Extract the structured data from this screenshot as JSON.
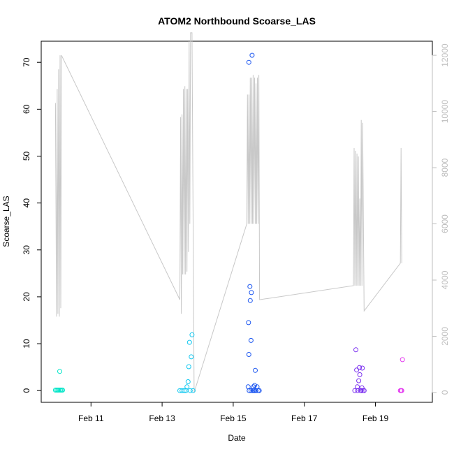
{
  "chart_data": {
    "type": "scatter",
    "title": "ATOM2 Northbound Scoarse_LAS",
    "xlabel": "Date",
    "ylabel": "Scoarse_LAS",
    "x_tick_labels": [
      "Feb 11",
      "Feb 13",
      "Feb 15",
      "Feb 17",
      "Feb 19"
    ],
    "x_tick_values": [
      11,
      13,
      15,
      17,
      19
    ],
    "xlim": [
      9.6,
      20.6
    ],
    "ylim": [
      -2.5,
      74.5
    ],
    "y_ticks": [
      0,
      10,
      20,
      30,
      40,
      50,
      60,
      70
    ],
    "y2lim": [
      -350,
      12500
    ],
    "y2_ticks": [
      0,
      2000,
      4000,
      6000,
      8000,
      10000,
      12000
    ],
    "y2_tick_labels": [
      "0",
      "2000",
      "4000",
      "6000",
      "8000",
      "10000",
      "12000"
    ],
    "line_color": "#c8c8c8",
    "grid": false,
    "points": [
      {
        "x": 10.0,
        "y": 0.1,
        "color": "#00e5c8"
      },
      {
        "x": 10.04,
        "y": 0.1,
        "color": "#00e5c8"
      },
      {
        "x": 10.07,
        "y": 0.1,
        "color": "#00e5c8"
      },
      {
        "x": 10.1,
        "y": 0.1,
        "color": "#00e5c8"
      },
      {
        "x": 10.12,
        "y": 4.1,
        "color": "#00e5c8"
      },
      {
        "x": 10.14,
        "y": 0.1,
        "color": "#00e5c8"
      },
      {
        "x": 10.17,
        "y": 0.1,
        "color": "#00e5c8"
      },
      {
        "x": 10.2,
        "y": 0.1,
        "color": "#00e5c8"
      },
      {
        "x": 13.5,
        "y": 0.0,
        "color": "#10c8f0"
      },
      {
        "x": 13.56,
        "y": 0.0,
        "color": "#10c8f0"
      },
      {
        "x": 13.62,
        "y": 0.0,
        "color": "#10c8f0"
      },
      {
        "x": 13.67,
        "y": 0.0,
        "color": "#10c8f0"
      },
      {
        "x": 13.7,
        "y": 0.8,
        "color": "#10c8f0"
      },
      {
        "x": 13.73,
        "y": 1.9,
        "color": "#10c8f0"
      },
      {
        "x": 13.75,
        "y": 5.1,
        "color": "#10c8f0"
      },
      {
        "x": 13.77,
        "y": 10.3,
        "color": "#10c8f0"
      },
      {
        "x": 13.79,
        "y": 0.0,
        "color": "#10c8f0"
      },
      {
        "x": 13.82,
        "y": 7.2,
        "color": "#10c8f0"
      },
      {
        "x": 13.84,
        "y": 11.9,
        "color": "#10c8f0"
      },
      {
        "x": 13.87,
        "y": 0.0,
        "color": "#10c8f0"
      },
      {
        "x": 15.42,
        "y": 0.8,
        "color": "#1a55f0"
      },
      {
        "x": 15.43,
        "y": 14.5,
        "color": "#1a55f0"
      },
      {
        "x": 15.44,
        "y": 7.7,
        "color": "#1a55f0"
      },
      {
        "x": 15.45,
        "y": 0.0,
        "color": "#1a55f0"
      },
      {
        "x": 15.44,
        "y": 70.0,
        "color": "#1a55f0"
      },
      {
        "x": 15.47,
        "y": 22.2,
        "color": "#1a55f0"
      },
      {
        "x": 15.48,
        "y": 19.2,
        "color": "#1a55f0"
      },
      {
        "x": 15.5,
        "y": 10.7,
        "color": "#1a55f0"
      },
      {
        "x": 15.51,
        "y": 20.9,
        "color": "#1a55f0"
      },
      {
        "x": 15.53,
        "y": 71.5,
        "color": "#1a55f0"
      },
      {
        "x": 15.55,
        "y": 0.0,
        "color": "#1a55f0"
      },
      {
        "x": 15.57,
        "y": 0.8,
        "color": "#1a55f0"
      },
      {
        "x": 15.58,
        "y": 0.0,
        "color": "#1a55f0"
      },
      {
        "x": 15.6,
        "y": 1.1,
        "color": "#1a55f0"
      },
      {
        "x": 15.62,
        "y": 4.3,
        "color": "#1a55f0"
      },
      {
        "x": 15.64,
        "y": 0.0,
        "color": "#1a55f0"
      },
      {
        "x": 15.67,
        "y": 0.8,
        "color": "#1a55f0"
      },
      {
        "x": 15.7,
        "y": 0.0,
        "color": "#1a55f0"
      },
      {
        "x": 15.73,
        "y": 0.0,
        "color": "#1a55f0"
      },
      {
        "x": 15.5,
        "y": 0.0,
        "color": "#1a55f0"
      },
      {
        "x": 15.6,
        "y": 0.0,
        "color": "#1a55f0"
      },
      {
        "x": 18.42,
        "y": 0.0,
        "color": "#7a2ff0"
      },
      {
        "x": 18.45,
        "y": 8.7,
        "color": "#7a2ff0"
      },
      {
        "x": 18.47,
        "y": 4.4,
        "color": "#7a2ff0"
      },
      {
        "x": 18.49,
        "y": 0.8,
        "color": "#7a2ff0"
      },
      {
        "x": 18.5,
        "y": 0.0,
        "color": "#7a2ff0"
      },
      {
        "x": 18.53,
        "y": 2.1,
        "color": "#7a2ff0"
      },
      {
        "x": 18.55,
        "y": 4.9,
        "color": "#7a2ff0"
      },
      {
        "x": 18.56,
        "y": 3.4,
        "color": "#7a2ff0"
      },
      {
        "x": 18.58,
        "y": 0.0,
        "color": "#7a2ff0"
      },
      {
        "x": 18.6,
        "y": 0.0,
        "color": "#7a2ff0"
      },
      {
        "x": 18.62,
        "y": 0.6,
        "color": "#7a2ff0"
      },
      {
        "x": 18.63,
        "y": 4.8,
        "color": "#7a2ff0"
      },
      {
        "x": 18.65,
        "y": 0.0,
        "color": "#7a2ff0"
      },
      {
        "x": 18.68,
        "y": 0.0,
        "color": "#7a2ff0"
      },
      {
        "x": 19.7,
        "y": 0.0,
        "color": "#e43bf0"
      },
      {
        "x": 19.72,
        "y": 0.0,
        "color": "#e43bf0"
      },
      {
        "x": 19.74,
        "y": 0.0,
        "color": "#e43bf0"
      },
      {
        "x": 19.76,
        "y": 6.6,
        "color": "#e43bf0"
      }
    ],
    "line_series": {
      "axis": "right",
      "points": [
        [
          10.0,
          10300
        ],
        [
          10.03,
          2700
        ],
        [
          10.05,
          10800
        ],
        [
          10.07,
          2800
        ],
        [
          10.09,
          11500
        ],
        [
          10.11,
          2700
        ],
        [
          10.13,
          12000
        ],
        [
          10.15,
          3000
        ],
        [
          10.17,
          12000
        ],
        [
          13.5,
          3300
        ],
        [
          13.52,
          9800
        ],
        [
          13.54,
          2800
        ],
        [
          13.56,
          9900
        ],
        [
          13.58,
          4200
        ],
        [
          13.6,
          10800
        ],
        [
          13.62,
          4200
        ],
        [
          13.64,
          10900
        ],
        [
          13.66,
          4200
        ],
        [
          13.68,
          10800
        ],
        [
          13.7,
          4300
        ],
        [
          13.72,
          10800
        ],
        [
          13.74,
          5000
        ],
        [
          13.76,
          12500
        ],
        [
          13.78,
          6000
        ],
        [
          13.8,
          12800
        ],
        [
          13.84,
          12800
        ],
        [
          13.9,
          0
        ],
        [
          15.38,
          6000
        ],
        [
          15.4,
          10600
        ],
        [
          15.42,
          6000
        ],
        [
          15.44,
          10600
        ],
        [
          15.46,
          6000
        ],
        [
          15.48,
          11200
        ],
        [
          15.5,
          6000
        ],
        [
          15.52,
          11200
        ],
        [
          15.54,
          6000
        ],
        [
          15.56,
          11300
        ],
        [
          15.58,
          6000
        ],
        [
          15.6,
          11200
        ],
        [
          15.62,
          6000
        ],
        [
          15.64,
          11000
        ],
        [
          15.66,
          6000
        ],
        [
          15.68,
          11200
        ],
        [
          15.7,
          6000
        ],
        [
          15.72,
          11300
        ],
        [
          15.74,
          3300
        ],
        [
          18.38,
          3800
        ],
        [
          18.4,
          8700
        ],
        [
          18.42,
          3800
        ],
        [
          18.44,
          8600
        ],
        [
          18.46,
          3800
        ],
        [
          18.48,
          8500
        ],
        [
          18.5,
          3800
        ],
        [
          18.52,
          8400
        ],
        [
          18.54,
          3800
        ],
        [
          18.56,
          6900
        ],
        [
          18.58,
          3800
        ],
        [
          18.6,
          9700
        ],
        [
          18.62,
          3800
        ],
        [
          18.64,
          9600
        ],
        [
          18.68,
          2900
        ],
        [
          19.7,
          4600
        ],
        [
          19.72,
          8700
        ],
        [
          19.74,
          4600
        ]
      ]
    }
  }
}
